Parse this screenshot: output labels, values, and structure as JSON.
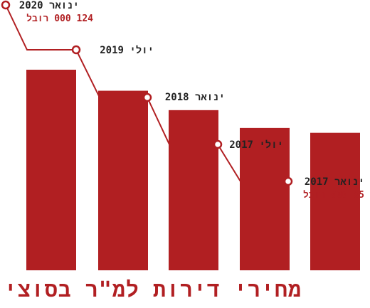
{
  "chart_data": {
    "type": "bar",
    "title": "מחירי דירות למ\"ר בסוצי",
    "categories": [
      "ינואר 2020",
      "יולי 2019",
      "ינואר 2018",
      "יולי 2017",
      "ינואר 2017"
    ],
    "values": [
      124000,
      111000,
      99000,
      88000,
      85000
    ],
    "value_labels": [
      "124 000 רובל",
      "",
      "",
      "",
      "85 000 רובל"
    ],
    "trend_line": true,
    "colors": {
      "bar": "#b11f22",
      "line": "#b11f22",
      "marker_fill": "#ffffff",
      "label_text": "#222222",
      "value_text": "#b11f22",
      "title": "#b11f22"
    }
  }
}
